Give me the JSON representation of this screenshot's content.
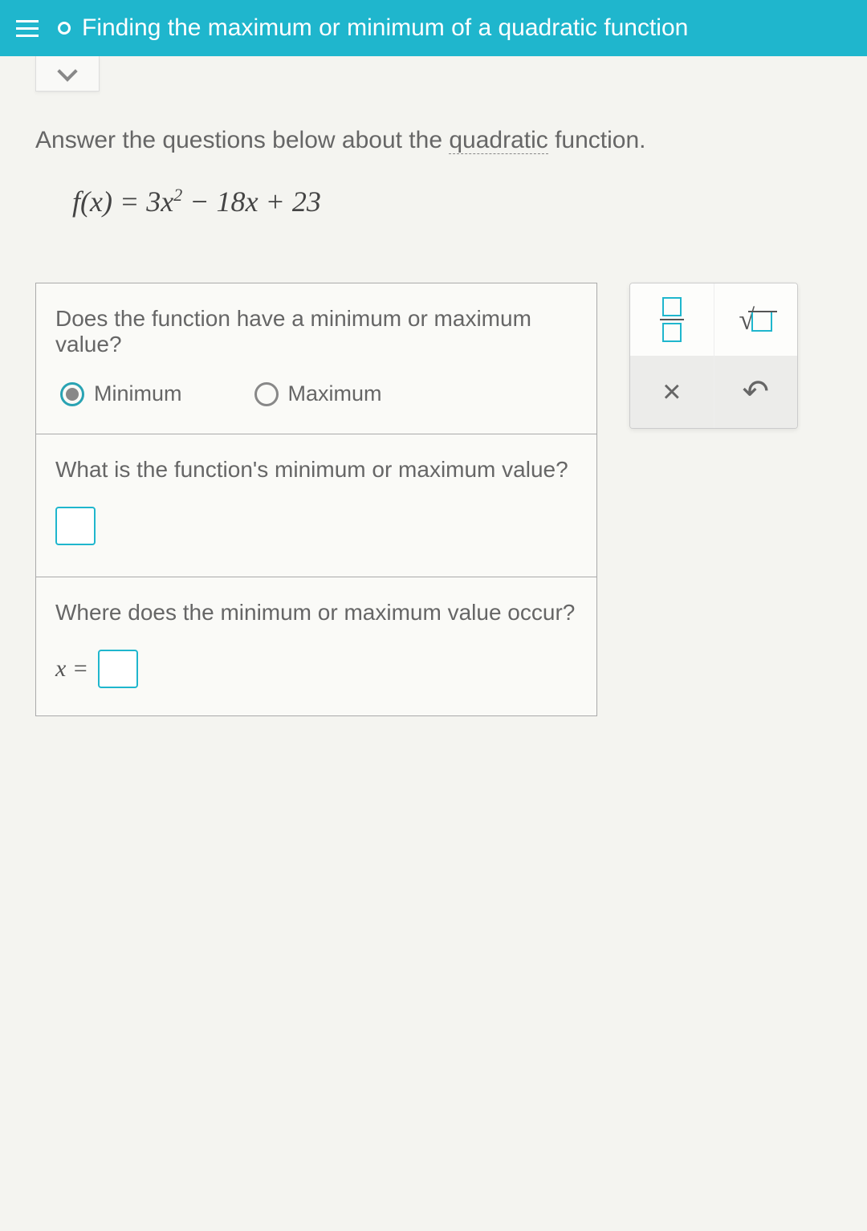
{
  "header": {
    "title": "Finding the maximum or minimum of a quadratic function"
  },
  "intro": {
    "prefix": "Answer the questions below about the ",
    "linked": "quadratic",
    "suffix": " function."
  },
  "equation": "f(x) = 3x² − 18x + 23",
  "questions": {
    "q1": {
      "prompt": "Does the function have a minimum or maximum value?",
      "opt1": "Minimum",
      "opt2": "Maximum"
    },
    "q2": {
      "prompt": "What is the function's minimum or maximum value?"
    },
    "q3": {
      "prompt": "Where does the minimum or maximum value occur?",
      "varLabel": "x ="
    }
  },
  "tools": {
    "times": "×",
    "undo": "↶"
  }
}
